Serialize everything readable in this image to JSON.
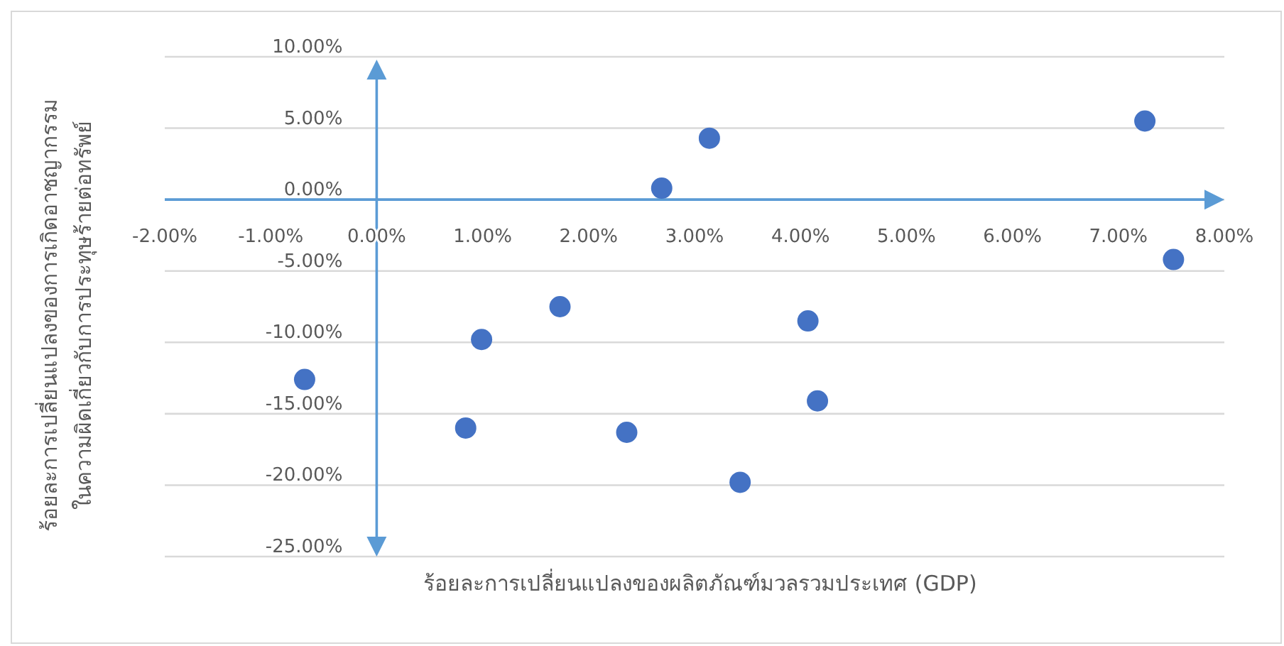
{
  "chart_data": {
    "type": "scatter",
    "xlabel": "ร้อยละการเปลี่ยนแปลงของผลิตภัณฑ์มวลรวมประเทศ (GDP)",
    "ylabel": "ร้อยละการเปลี่ยนแปลงของการเกิดอาชญากรรม\nในความผิดเกี่ยวกับการประทุษร้ายต่อทรัพย์",
    "x": [
      -0.68,
      0.84,
      0.99,
      1.73,
      2.36,
      2.69,
      3.14,
      3.43,
      4.07,
      4.16,
      7.25,
      7.52
    ],
    "values": [
      -12.6,
      -16,
      -9.8,
      -7.5,
      -16.3,
      0.8,
      4.3,
      -19.8,
      -8.5,
      -14.1,
      5.5,
      -4.2
    ],
    "color": "#4472c4",
    "marker": "circle",
    "grid": "y",
    "xlim": [
      -2,
      8
    ],
    "ylim": [
      -25,
      10
    ],
    "xticks": [
      {
        "value": -2,
        "label": "-2.00%"
      },
      {
        "value": -1,
        "label": "-1.00%"
      },
      {
        "value": 0,
        "label": "0.00%"
      },
      {
        "value": 1,
        "label": "1.00%"
      },
      {
        "value": 2,
        "label": "2.00%"
      },
      {
        "value": 3,
        "label": "3.00%"
      },
      {
        "value": 4,
        "label": "4.00%"
      },
      {
        "value": 5,
        "label": "5.00%"
      },
      {
        "value": 6,
        "label": "6.00%"
      },
      {
        "value": 7,
        "label": "7.00%"
      },
      {
        "value": 8,
        "label": "8.00%"
      }
    ],
    "yticks": [
      {
        "value": 10,
        "label": "10.00%"
      },
      {
        "value": 5,
        "label": "5.00%"
      },
      {
        "value": 0,
        "label": "0.00%"
      },
      {
        "value": -5,
        "label": "-5.00%"
      },
      {
        "value": -10,
        "label": "-10.00%"
      },
      {
        "value": -15,
        "label": "-15.00%"
      },
      {
        "value": -20,
        "label": "-20.00%"
      },
      {
        "value": -25,
        "label": "-25.00%"
      }
    ]
  }
}
